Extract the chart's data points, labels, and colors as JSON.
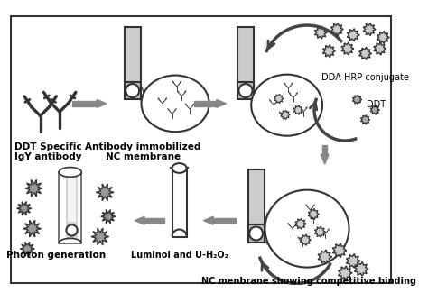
{
  "labels": {
    "ddt_antibody": "DDT Specific\nIgY antibody",
    "nc_membrane": "Antibody immobilized\nNC membrane",
    "dda_hrp": "DDA-HRP conjugate",
    "ddt": "DDT",
    "competitive": "NC menbrane showing competitive binding",
    "luminol": "Luminol and U-H₂O₂",
    "photon": "Photon generation"
  },
  "darkgray": "#333333",
  "midgray": "#777777",
  "lightgray": "#cccccc",
  "stripgray": "#bbbbbb",
  "arrowgray": "#888888",
  "font_size": 7.0,
  "bold_font_size": 7.5
}
